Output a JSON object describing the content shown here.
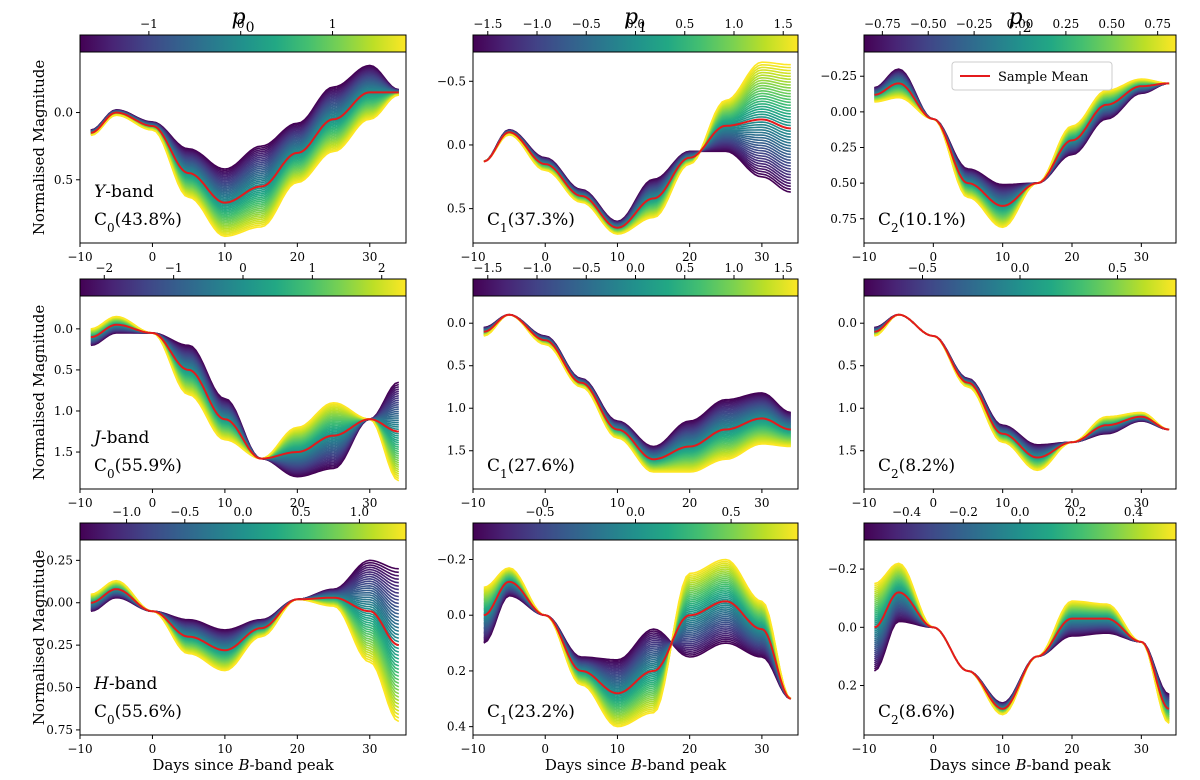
{
  "figure": {
    "column_titles": [
      {
        "base": "p",
        "sub": "0"
      },
      {
        "base": "p",
        "sub": "1"
      },
      {
        "base": "p",
        "sub": "2"
      }
    ],
    "ylabel": "Normalised Magnitude",
    "xlabel": {
      "prefix": "Days since ",
      "italic": "B",
      "suffix": "-band peak"
    },
    "legend": {
      "label": "Sample Mean",
      "color": "#e41a1c"
    },
    "mean_line_color": "#e41a1c",
    "colormap": "viridis",
    "x_ticks": [
      "−10",
      "0",
      "10",
      "20",
      "30"
    ]
  },
  "chart_data": [
    {
      "type": "line",
      "band": "Y",
      "component": "0",
      "variance": "(43.8%)",
      "band_label": {
        "italic": "Y",
        "suffix": "-band"
      },
      "xlim": [
        -10,
        35
      ],
      "ylim": [
        0.97,
        -0.45
      ],
      "y_ticks": [
        0.0,
        0.5
      ],
      "y_tick_labels": [
        "0.0",
        "0.5"
      ],
      "cb_range": [
        -1.75,
        1.8
      ],
      "cb_ticks": [
        -1,
        0,
        1
      ],
      "cb_tick_labels": [
        "−1",
        "0",
        "1"
      ],
      "x": [
        -8.5,
        -5,
        0,
        5,
        10,
        15,
        20,
        25,
        30,
        34
      ],
      "mean": [
        0.15,
        0.0,
        0.1,
        0.45,
        0.67,
        0.55,
        0.3,
        0.05,
        -0.15,
        -0.15
      ],
      "amplitude": [
        0.02,
        0.02,
        0.03,
        0.18,
        0.25,
        0.3,
        0.22,
        0.24,
        0.2,
        0.02
      ],
      "note_lines": 2
    },
    {
      "type": "line",
      "band": "Y",
      "component": "1",
      "variance": "(37.3%)",
      "xlim": [
        -10,
        35
      ],
      "ylim": [
        0.77,
        -0.73
      ],
      "y_ticks": [
        -0.5,
        0.0,
        0.5
      ],
      "y_tick_labels": [
        "−0.5",
        "0.0",
        "0.5"
      ],
      "cb_range": [
        -1.65,
        1.65
      ],
      "cb_ticks": [
        -1.5,
        -1.0,
        -0.5,
        0.0,
        0.5,
        1.0,
        1.5
      ],
      "cb_tick_labels": [
        "−1.5",
        "−1.0",
        "−0.5",
        "0.0",
        "0.5",
        "1.0",
        "1.5"
      ],
      "x": [
        -8.5,
        -5,
        0,
        5,
        10,
        15,
        20,
        25,
        30,
        34
      ],
      "mean": [
        0.13,
        -0.1,
        0.15,
        0.4,
        0.65,
        0.42,
        0.1,
        -0.15,
        -0.2,
        -0.13
      ],
      "amplitude": [
        0.0,
        0.02,
        0.05,
        0.05,
        0.05,
        0.15,
        0.05,
        -0.2,
        -0.45,
        -0.5
      ],
      "note_lines": 1
    },
    {
      "type": "line",
      "band": "Y",
      "component": "2",
      "variance": "(10.1%)",
      "xlim": [
        -10,
        35
      ],
      "ylim": [
        0.92,
        -0.42
      ],
      "y_ticks": [
        -0.25,
        0.0,
        0.25,
        0.5,
        0.75
      ],
      "y_tick_labels": [
        "−0.25",
        "0.00",
        "0.25",
        "0.50",
        "0.75"
      ],
      "cb_range": [
        -0.85,
        0.85
      ],
      "cb_ticks": [
        -0.75,
        -0.5,
        -0.25,
        0.0,
        0.25,
        0.5,
        0.75
      ],
      "cb_tick_labels": [
        "−0.75",
        "−0.50",
        "−0.25",
        "0.00",
        "0.25",
        "0.50",
        "0.75"
      ],
      "x": [
        -8.5,
        -5,
        0,
        5,
        10,
        15,
        20,
        25,
        30,
        34
      ],
      "mean": [
        -0.12,
        -0.2,
        0.05,
        0.5,
        0.66,
        0.5,
        0.2,
        -0.05,
        -0.18,
        -0.2
      ],
      "amplitude": [
        0.05,
        0.1,
        0.0,
        0.1,
        0.15,
        0.0,
        -0.1,
        -0.1,
        -0.05,
        0.0
      ],
      "note_lines": 1,
      "legend": true
    },
    {
      "type": "line",
      "band": "J",
      "component": "0",
      "variance": "(55.9%)",
      "band_label": {
        "italic": "J",
        "suffix": "-band"
      },
      "xlim": [
        -10,
        35
      ],
      "ylim": [
        1.95,
        -0.4
      ],
      "y_ticks": [
        0.0,
        0.5,
        1.0,
        1.5
      ],
      "y_tick_labels": [
        "0.0",
        "0.5",
        "1.0",
        "1.5"
      ],
      "cb_range": [
        -2.35,
        2.35
      ],
      "cb_ticks": [
        -2,
        -1,
        0,
        1,
        2
      ],
      "cb_tick_labels": [
        "−2",
        "−1",
        "0",
        "1",
        "2"
      ],
      "x": [
        -8.5,
        -5,
        0,
        5,
        10,
        15,
        20,
        25,
        30,
        34
      ],
      "mean": [
        0.1,
        -0.05,
        0.05,
        0.5,
        1.1,
        1.58,
        1.5,
        1.3,
        1.1,
        1.25
      ],
      "amplitude": [
        -0.1,
        -0.1,
        0.0,
        0.3,
        0.25,
        0.0,
        -0.3,
        -0.4,
        0.0,
        0.6
      ],
      "note_lines": 2
    },
    {
      "type": "line",
      "band": "J",
      "component": "1",
      "variance": "(27.6%)",
      "xlim": [
        -10,
        35
      ],
      "ylim": [
        1.95,
        -0.32
      ],
      "y_ticks": [
        0.0,
        0.5,
        1.0,
        1.5
      ],
      "y_tick_labels": [
        "0.0",
        "0.5",
        "1.0",
        "1.5"
      ],
      "cb_range": [
        -1.65,
        1.65
      ],
      "cb_ticks": [
        -1.5,
        -1.0,
        -0.5,
        0.0,
        0.5,
        1.0,
        1.5
      ],
      "cb_tick_labels": [
        "−1.5",
        "−1.0",
        "−0.5",
        "0.0",
        "0.5",
        "1.0",
        "1.5"
      ],
      "x": [
        -8.5,
        -5,
        0,
        5,
        10,
        15,
        20,
        25,
        30,
        34
      ],
      "mean": [
        0.1,
        -0.1,
        0.2,
        0.7,
        1.25,
        1.6,
        1.45,
        1.25,
        1.12,
        1.25
      ],
      "amplitude": [
        0.05,
        0.0,
        0.05,
        0.05,
        0.1,
        0.15,
        0.3,
        0.35,
        0.3,
        0.2
      ],
      "note_lines": 1
    },
    {
      "type": "line",
      "band": "J",
      "component": "2",
      "variance": "(8.2%)",
      "xlim": [
        -10,
        35
      ],
      "ylim": [
        1.95,
        -0.32
      ],
      "y_ticks": [
        0.0,
        0.5,
        1.0,
        1.5
      ],
      "y_tick_labels": [
        "0.0",
        "0.5",
        "1.0",
        "1.5"
      ],
      "cb_range": [
        -0.8,
        0.8
      ],
      "cb_ticks": [
        -0.5,
        0.0,
        0.5
      ],
      "cb_tick_labels": [
        "−0.5",
        "0.0",
        "0.5"
      ],
      "x": [
        -8.5,
        -5,
        0,
        5,
        10,
        15,
        20,
        25,
        30,
        34
      ],
      "mean": [
        0.1,
        -0.1,
        0.15,
        0.7,
        1.3,
        1.58,
        1.4,
        1.2,
        1.1,
        1.25
      ],
      "amplitude": [
        0.05,
        0.0,
        0.0,
        0.05,
        0.1,
        0.15,
        0.0,
        -0.1,
        -0.05,
        0.0
      ],
      "note_lines": 1
    },
    {
      "type": "line",
      "band": "H",
      "component": "0",
      "variance": "(55.6%)",
      "band_label": {
        "italic": "H",
        "suffix": "-band"
      },
      "xlim": [
        -10,
        35
      ],
      "ylim": [
        0.78,
        -0.37
      ],
      "y_ticks": [
        -0.25,
        0.0,
        0.25,
        0.5,
        0.75
      ],
      "y_tick_labels": [
        "−0.25",
        "0.00",
        "0.25",
        "0.50",
        "0.75"
      ],
      "cb_range": [
        -1.4,
        1.4
      ],
      "cb_ticks": [
        -1.0,
        -0.5,
        0.0,
        0.5,
        1.0
      ],
      "cb_tick_labels": [
        "−1.0",
        "−0.5",
        "0.0",
        "0.5",
        "1.0"
      ],
      "x": [
        -8.5,
        -5,
        0,
        5,
        10,
        15,
        20,
        25,
        30,
        34
      ],
      "mean": [
        0.0,
        -0.08,
        0.05,
        0.2,
        0.28,
        0.15,
        -0.02,
        -0.03,
        0.05,
        0.25
      ],
      "amplitude": [
        -0.05,
        -0.05,
        0.0,
        0.1,
        0.12,
        0.05,
        0.0,
        0.05,
        0.3,
        0.45
      ],
      "note_lines": 2
    },
    {
      "type": "line",
      "band": "H",
      "component": "1",
      "variance": "(23.2%)",
      "xlim": [
        -10,
        35
      ],
      "ylim": [
        0.43,
        -0.27
      ],
      "y_ticks": [
        -0.2,
        0.0,
        0.2,
        0.4
      ],
      "y_tick_labels": [
        "−0.2",
        "0.0",
        "0.2",
        "0.4"
      ],
      "cb_range": [
        -0.85,
        0.85
      ],
      "cb_ticks": [
        -0.5,
        0.0,
        0.5
      ],
      "cb_tick_labels": [
        "−0.5",
        "0.0",
        "0.5"
      ],
      "x": [
        -8.5,
        -5,
        0,
        5,
        10,
        15,
        20,
        25,
        30,
        34
      ],
      "mean": [
        0.0,
        -0.12,
        0.0,
        0.2,
        0.28,
        0.2,
        0.0,
        -0.05,
        0.05,
        0.3
      ],
      "amplitude": [
        -0.1,
        -0.05,
        0.0,
        0.05,
        0.12,
        0.15,
        -0.15,
        -0.15,
        -0.1,
        0.0
      ],
      "note_lines": 1
    },
    {
      "type": "line",
      "band": "H",
      "component": "2",
      "variance": "(8.6%)",
      "xlim": [
        -10,
        35
      ],
      "ylim": [
        0.37,
        -0.3
      ],
      "y_ticks": [
        -0.2,
        0.0,
        0.2
      ],
      "y_tick_labels": [
        "−0.2",
        "0.0",
        "0.2"
      ],
      "cb_range": [
        -0.55,
        0.55
      ],
      "cb_ticks": [
        -0.4,
        -0.2,
        0.0,
        0.2,
        0.4
      ],
      "cb_tick_labels": [
        "−0.4",
        "−0.2",
        "0.0",
        "0.2",
        "0.4"
      ],
      "x": [
        -8.5,
        -5,
        0,
        5,
        10,
        15,
        20,
        25,
        30,
        34
      ],
      "mean": [
        0.0,
        -0.12,
        0.0,
        0.15,
        0.28,
        0.1,
        -0.03,
        -0.03,
        0.05,
        0.28
      ],
      "amplitude": [
        -0.15,
        -0.1,
        0.0,
        0.0,
        0.02,
        0.0,
        -0.06,
        -0.05,
        0.0,
        0.05
      ],
      "note_lines": 1
    }
  ]
}
